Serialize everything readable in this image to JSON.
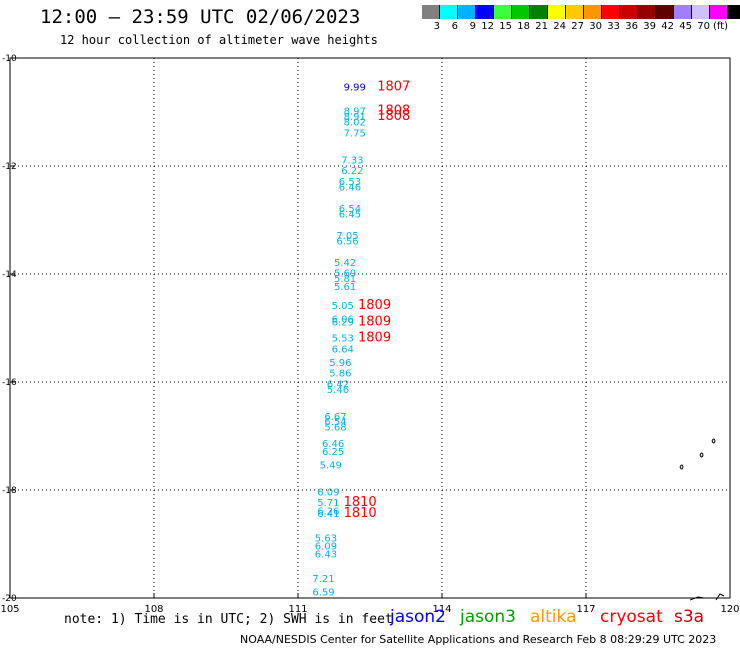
{
  "header": {
    "title": "12:00 — 23:59 UTC 02/06/2023",
    "subtitle": "12 hour collection of altimeter wave heights"
  },
  "legend": {
    "colors": [
      "#808080",
      "#00ffff",
      "#00b3ff",
      "#0000ff",
      "#3cff3c",
      "#00c800",
      "#008000",
      "#ffff00",
      "#ffc800",
      "#ff9600",
      "#ff0000",
      "#c80000",
      "#960000",
      "#600000",
      "#a080ff",
      "#d0c0ff",
      "#ff00ff",
      "#000000"
    ],
    "ticks": [
      "3",
      "6",
      "9",
      "12",
      "15",
      "18",
      "21",
      "24",
      "27",
      "30",
      "33",
      "36",
      "39",
      "42",
      "45",
      "70",
      "(ft)"
    ]
  },
  "footer": {
    "note": "note: 1) Time is in UTC; 2) SWH is in feet",
    "credit": "NOAA/NESDIS Center for Satellite Applications and Research   Feb  8 08:29:29 UTC 2023"
  },
  "satellites": [
    {
      "name": "jason2",
      "color": "#0000ff"
    },
    {
      "name": "jason3",
      "color": "#00a000"
    },
    {
      "name": "altika",
      "color": "#ff9900"
    },
    {
      "name": "cryosat",
      "color": "#ff0000"
    },
    {
      "name": "s3a",
      "color": "#c80000"
    }
  ],
  "chart_data": {
    "type": "scatter",
    "xlim": [
      105,
      120
    ],
    "ylim": [
      -20,
      -10
    ],
    "x_ticks": [
      "105",
      "108",
      "111",
      "114",
      "117",
      "120"
    ],
    "y_ticks": [
      "-10",
      "-12",
      "-14",
      "-16",
      "-18",
      "-20"
    ],
    "grid": true,
    "series": [
      {
        "name": "jason2",
        "color": "#0000dd",
        "points": [
          {
            "lon": 111.95,
            "lat": -10.6,
            "label": "9.99"
          }
        ]
      },
      {
        "name": "s3a track",
        "color": "#00b4e8",
        "points": [
          {
            "lon": 111.95,
            "lat": -11.05,
            "label": "8.97"
          },
          {
            "lon": 111.95,
            "lat": -11.15,
            "label": "8.91"
          },
          {
            "lon": 111.95,
            "lat": -11.25,
            "label": "8.02"
          },
          {
            "lon": 111.95,
            "lat": -11.45,
            "label": "7.75"
          },
          {
            "lon": 111.9,
            "lat": -11.95,
            "label": "7.33"
          },
          {
            "lon": 111.9,
            "lat": -12.15,
            "label": "6.22"
          },
          {
            "lon": 111.85,
            "lat": -12.35,
            "label": "6.53"
          },
          {
            "lon": 111.85,
            "lat": -12.45,
            "label": "6.46"
          },
          {
            "lon": 111.85,
            "lat": -12.85,
            "label": "6.54"
          },
          {
            "lon": 111.85,
            "lat": -12.95,
            "label": "6.45"
          },
          {
            "lon": 111.8,
            "lat": -13.35,
            "label": "7.05"
          },
          {
            "lon": 111.8,
            "lat": -13.45,
            "label": "6.56"
          },
          {
            "lon": 111.75,
            "lat": -13.85,
            "label": "5.42"
          },
          {
            "lon": 111.75,
            "lat": -14.05,
            "label": "5.69"
          },
          {
            "lon": 111.75,
            "lat": -14.15,
            "label": "5.81"
          },
          {
            "lon": 111.75,
            "lat": -14.3,
            "label": "5.61"
          },
          {
            "lon": 111.7,
            "lat": -14.65,
            "label": "5.05"
          },
          {
            "lon": 111.7,
            "lat": -14.9,
            "label": "6.06"
          },
          {
            "lon": 111.7,
            "lat": -14.95,
            "label": "6.29"
          },
          {
            "lon": 111.7,
            "lat": -15.25,
            "label": "5.53"
          },
          {
            "lon": 111.7,
            "lat": -15.45,
            "label": "6.64"
          },
          {
            "lon": 111.65,
            "lat": -15.7,
            "label": "5.96"
          },
          {
            "lon": 111.65,
            "lat": -15.9,
            "label": "5.86"
          },
          {
            "lon": 111.6,
            "lat": -16.1,
            "label": "6.42"
          },
          {
            "lon": 111.6,
            "lat": -16.2,
            "label": "5.46"
          },
          {
            "lon": 111.55,
            "lat": -16.7,
            "label": "6.67"
          },
          {
            "lon": 111.55,
            "lat": -16.8,
            "label": "6.54"
          },
          {
            "lon": 111.55,
            "lat": -16.9,
            "label": "5.68"
          },
          {
            "lon": 111.5,
            "lat": -17.2,
            "label": "6.46"
          },
          {
            "lon": 111.5,
            "lat": -17.35,
            "label": "6.25"
          },
          {
            "lon": 111.45,
            "lat": -17.6,
            "label": "5.49"
          },
          {
            "lon": 111.4,
            "lat": -18.1,
            "label": "6.09"
          },
          {
            "lon": 111.4,
            "lat": -18.3,
            "label": "5.71"
          },
          {
            "lon": 111.4,
            "lat": -18.45,
            "label": "6.26"
          },
          {
            "lon": 111.4,
            "lat": -18.5,
            "label": "6.41"
          },
          {
            "lon": 111.35,
            "lat": -18.95,
            "label": "5.63"
          },
          {
            "lon": 111.35,
            "lat": -19.1,
            "label": "6.09"
          },
          {
            "lon": 111.35,
            "lat": -19.25,
            "label": "6.43"
          },
          {
            "lon": 111.3,
            "lat": -19.7,
            "label": "7.21"
          },
          {
            "lon": 111.3,
            "lat": -19.95,
            "label": "6.59"
          }
        ]
      },
      {
        "name": "time stamps",
        "color": "#ff0000",
        "points": [
          {
            "lon": 112.65,
            "lat": -10.6,
            "label": "1807"
          },
          {
            "lon": 112.65,
            "lat": -11.05,
            "label": "1808"
          },
          {
            "lon": 112.65,
            "lat": -11.15,
            "label": "1808"
          },
          {
            "lon": 112.25,
            "lat": -14.65,
            "label": "1809"
          },
          {
            "lon": 112.25,
            "lat": -14.95,
            "label": "1809"
          },
          {
            "lon": 112.25,
            "lat": -15.25,
            "label": "1809"
          },
          {
            "lon": 111.95,
            "lat": -18.3,
            "label": "1810"
          },
          {
            "lon": 111.95,
            "lat": -18.5,
            "label": "1810"
          }
        ]
      }
    ]
  }
}
